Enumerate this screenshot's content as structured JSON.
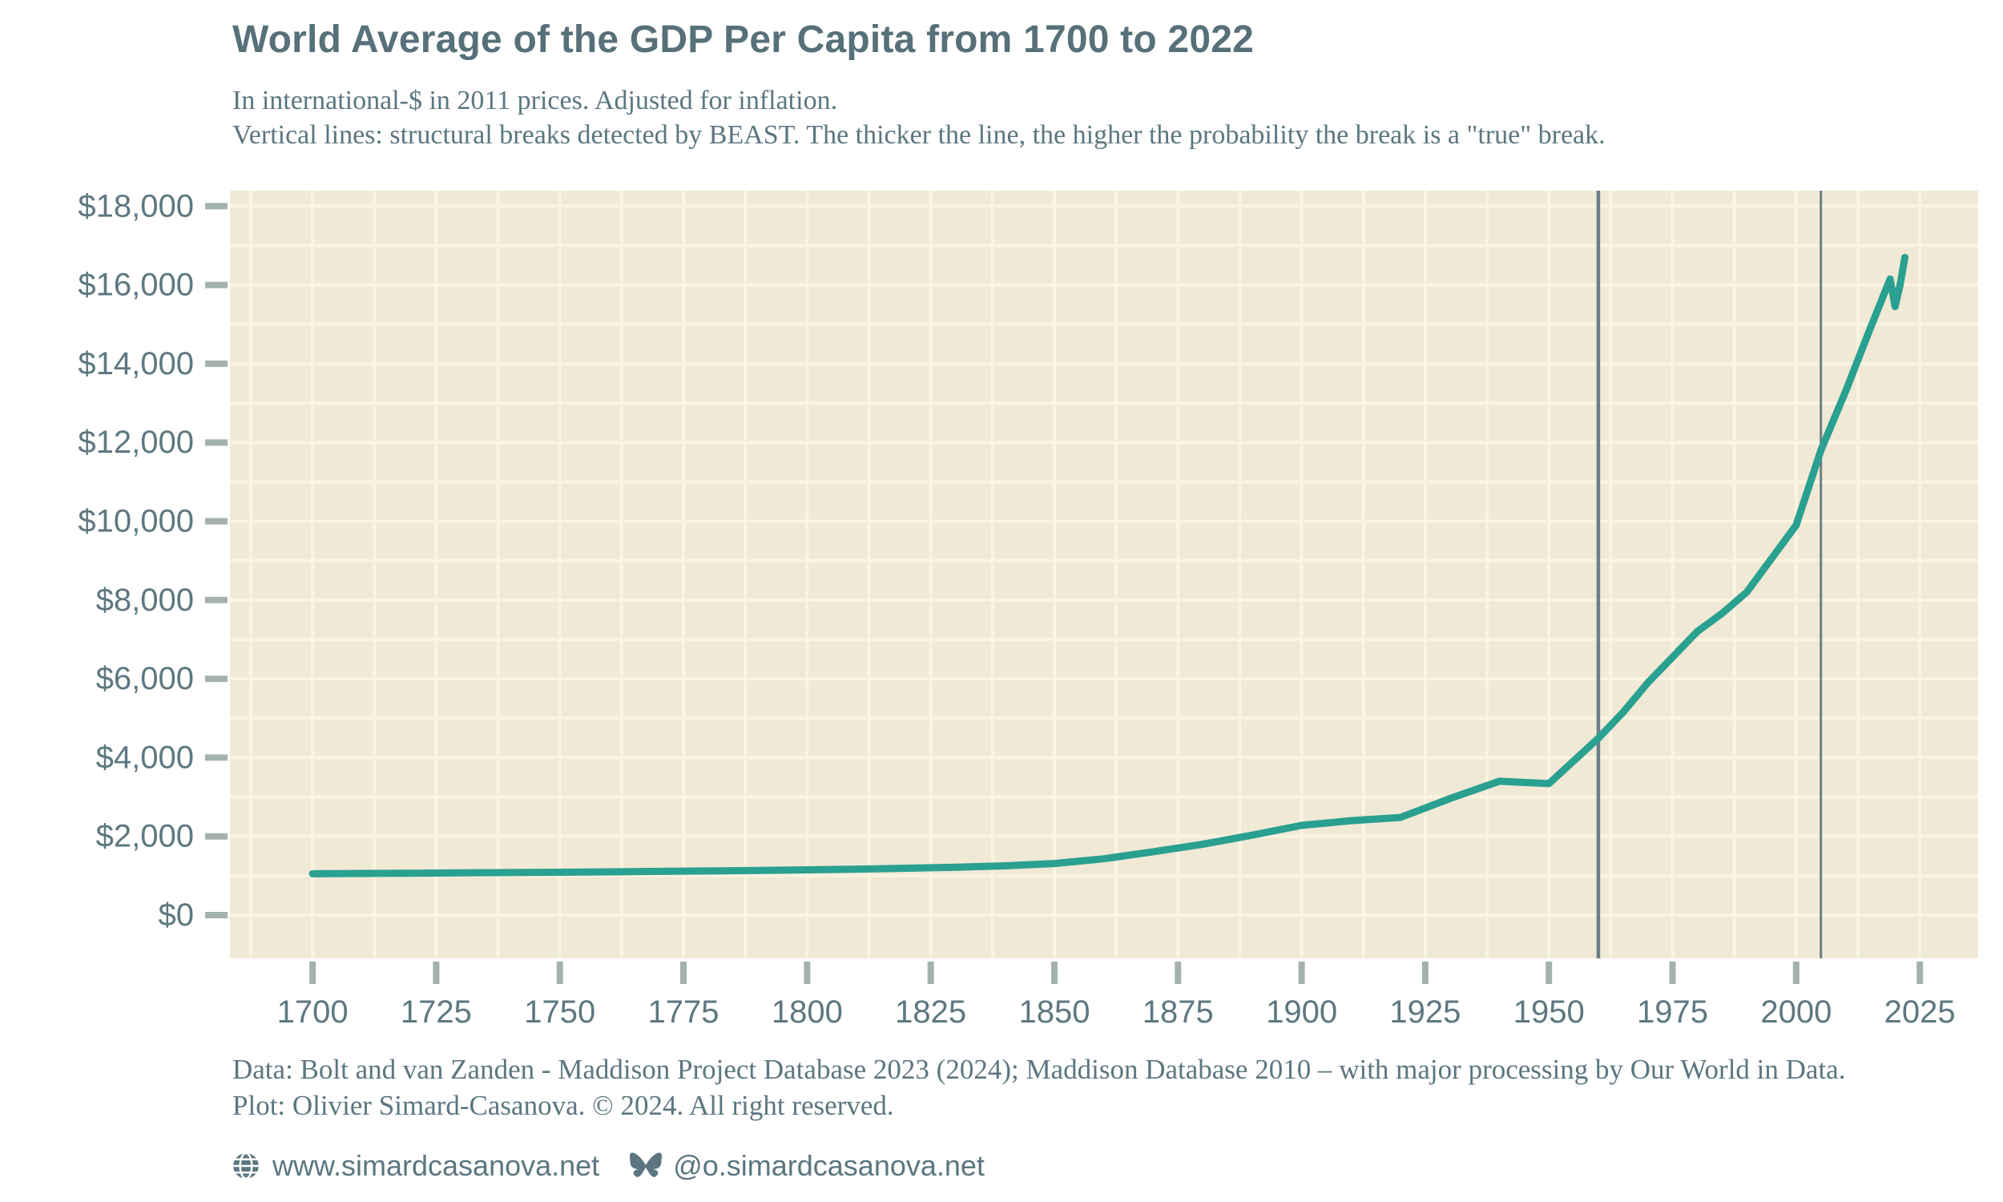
{
  "header": {
    "title": "World Average of the GDP Per Capita from 1700 to 2022",
    "subtitle_line1": "In international-$ in 2011 prices. Adjusted for inflation.",
    "subtitle_line2": "Vertical lines: structural breaks detected by BEAST. The thicker the line, the higher the probability the break is a \"true\" break."
  },
  "footer": {
    "source_line": "Data: Bolt and van Zanden - Maddison Project Database 2023 (2024); Maddison Database 2010 – with major processing by Our World in Data.",
    "credit_line": "Plot: Olivier Simard-Casanova. © 2024. All right reserved.",
    "website": "www.simardcasanova.net",
    "bluesky_handle": "@o.simardcasanova.net"
  },
  "colors": {
    "line": "#2aa091",
    "plot_background": "#f0e9d5",
    "gridline": "#faf4e1",
    "break_line": "#6b7e88",
    "tick": "#a3b2ad",
    "axis_text": "#5e7781",
    "title_text": "#57707a",
    "body_text": "#5b7680"
  },
  "chart_data": {
    "type": "line",
    "title": "World Average of the GDP Per Capita from 1700 to 2022",
    "subtitle": "In international-$ in 2011 prices. Adjusted for inflation. Vertical lines: structural breaks detected by BEAST. The thicker the line, the higher the probability the break is a \"true\" break.",
    "xlabel": "",
    "ylabel": "",
    "grid": true,
    "legend": false,
    "x_ticks": [
      1700,
      1725,
      1750,
      1775,
      1800,
      1825,
      1850,
      1875,
      1900,
      1925,
      1950,
      1975,
      2000,
      2025
    ],
    "x_tick_labels": [
      "1700",
      "1725",
      "1750",
      "1775",
      "1800",
      "1825",
      "1850",
      "1875",
      "1900",
      "1925",
      "1950",
      "1975",
      "2000",
      "2025"
    ],
    "y_ticks": [
      0,
      2000,
      4000,
      6000,
      8000,
      10000,
      12000,
      14000,
      16000,
      18000
    ],
    "y_tick_labels": [
      "$0",
      "$2,000",
      "$4,000",
      "$6,000",
      "$8,000",
      "$10,000",
      "$12,000",
      "$14,000",
      "$16,000",
      "$18,000"
    ],
    "x_range_years": [
      1683.3,
      2036.8
    ],
    "y_range": [
      -1098,
      18392
    ],
    "x_minor_step_years": 12.5,
    "x_minor_start_year": 1687.5,
    "y_minor_step": 1000,
    "series": [
      {
        "name": "World average GDP per capita (international-$, 2011 prices)",
        "points": [
          [
            1700,
            1050
          ],
          [
            1710,
            1058
          ],
          [
            1720,
            1065
          ],
          [
            1730,
            1072
          ],
          [
            1740,
            1080
          ],
          [
            1750,
            1090
          ],
          [
            1760,
            1100
          ],
          [
            1770,
            1112
          ],
          [
            1780,
            1122
          ],
          [
            1790,
            1135
          ],
          [
            1800,
            1150
          ],
          [
            1810,
            1168
          ],
          [
            1820,
            1190
          ],
          [
            1830,
            1218
          ],
          [
            1840,
            1252
          ],
          [
            1850,
            1310
          ],
          [
            1860,
            1430
          ],
          [
            1870,
            1610
          ],
          [
            1880,
            1800
          ],
          [
            1890,
            2030
          ],
          [
            1900,
            2280
          ],
          [
            1910,
            2400
          ],
          [
            1920,
            2480
          ],
          [
            1930,
            2960
          ],
          [
            1940,
            3400
          ],
          [
            1950,
            3340
          ],
          [
            1960,
            4490
          ],
          [
            1965,
            5150
          ],
          [
            1970,
            5900
          ],
          [
            1975,
            6550
          ],
          [
            1980,
            7200
          ],
          [
            1985,
            7660
          ],
          [
            1990,
            8200
          ],
          [
            1995,
            9050
          ],
          [
            2000,
            9900
          ],
          [
            2005,
            11800
          ],
          [
            2010,
            13300
          ],
          [
            2015,
            14900
          ],
          [
            2019,
            16150
          ],
          [
            2020,
            15450
          ],
          [
            2021,
            16000
          ],
          [
            2022,
            16700
          ]
        ]
      }
    ],
    "structural_breaks": [
      {
        "year": 1960,
        "stroke_width": 4.5
      },
      {
        "year": 2005,
        "stroke_width": 3
      }
    ]
  }
}
